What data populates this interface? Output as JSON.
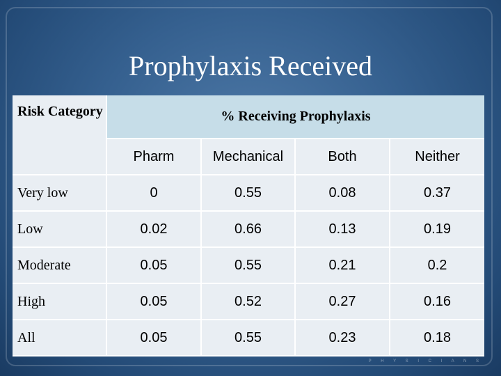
{
  "slide": {
    "title": "Prophylaxis Received",
    "footer": "P H Y S I C I A N S"
  },
  "table": {
    "risk_header": "Risk Category",
    "group_header": "% Receiving Prophylaxis",
    "columns": [
      "Pharm",
      "Mechanical",
      "Both",
      "Neither"
    ],
    "rows": [
      {
        "label": "Very low",
        "values": [
          "0",
          "0.55",
          "0.08",
          "0.37"
        ]
      },
      {
        "label": "Low",
        "values": [
          "0.02",
          "0.66",
          "0.13",
          "0.19"
        ]
      },
      {
        "label": "Moderate",
        "values": [
          "0.05",
          "0.55",
          "0.21",
          "0.2"
        ]
      },
      {
        "label": "High",
        "values": [
          "0.05",
          "0.52",
          "0.27",
          "0.16"
        ]
      },
      {
        "label": "All",
        "values": [
          "0.05",
          "0.55",
          "0.23",
          "0.18"
        ]
      }
    ]
  },
  "colors": {
    "background": "#2b5584",
    "table_body": "#e9eef3",
    "group_header_bg": "#c6dde8",
    "title_text": "#ffffff"
  }
}
